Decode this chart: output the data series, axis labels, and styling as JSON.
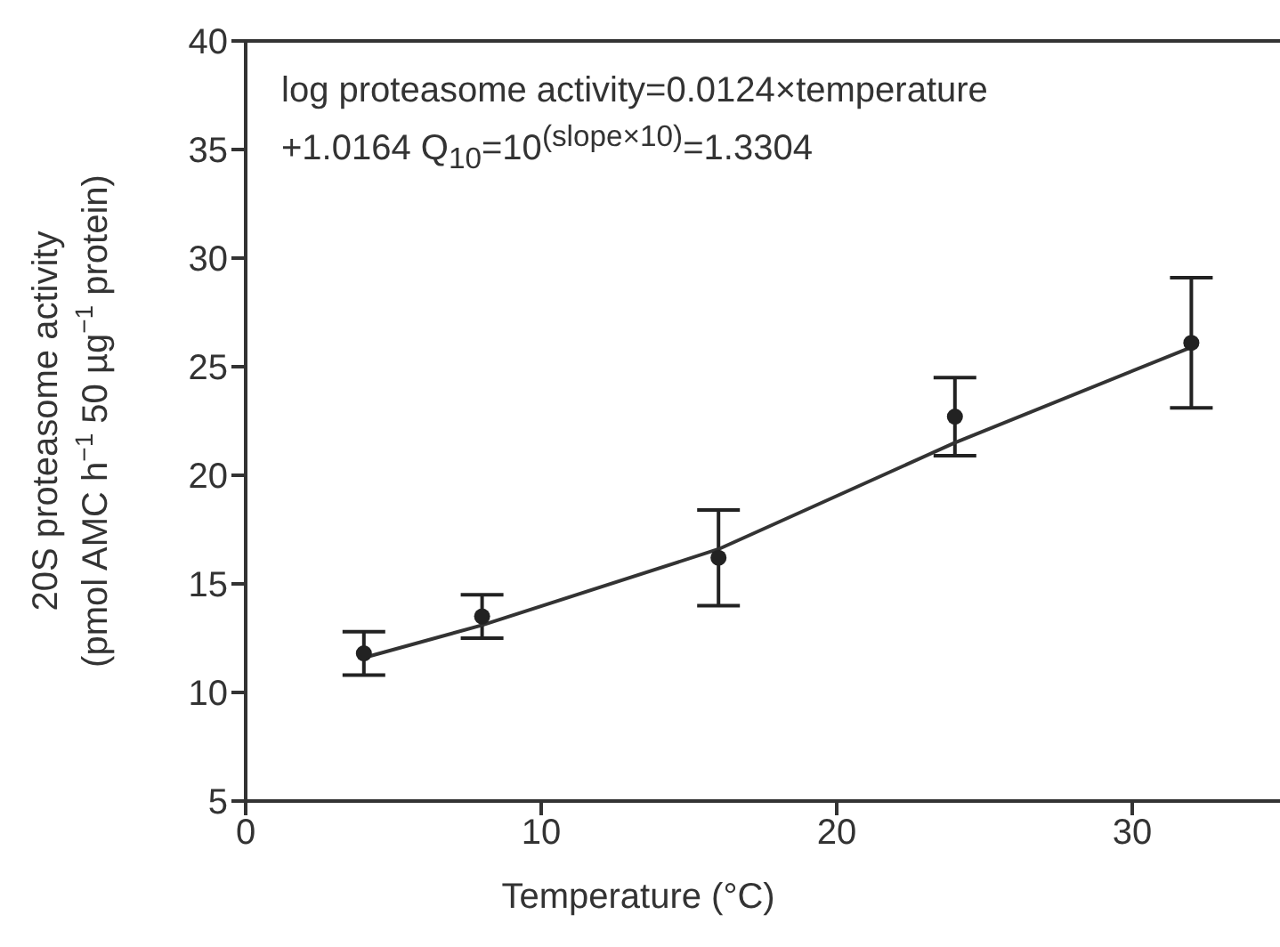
{
  "chart_data": {
    "type": "scatter",
    "xlabel": "Temperature (°C)",
    "ylabel": "20S proteasome activity\n(pmol AMC h$^{−1}$ 50 µg$^{−1}$ protein)",
    "annotations": [
      "log proteasome activity=0.0124×temperature",
      "+1.0164 Q$_{10}$=10$^{(slope×10)}$=1.3304"
    ],
    "series": [
      {
        "color": "#222222",
        "x": [
          4,
          8,
          16,
          24,
          32
        ],
        "values": [
          11.8,
          13.5,
          16.2,
          22.7,
          26.1
        ],
        "errors": [
          1,
          1,
          2.2,
          1.8,
          3
        ],
        "marker": "circle"
      },
      {
        "type": "line",
        "color": "#333333",
        "x": [
          4,
          8,
          16,
          24,
          32
        ],
        "values": [
          11.6,
          13.1,
          16.6,
          21.5,
          25.9
        ],
        "marker": "none",
        "line_style": "solid"
      }
    ],
    "xlim": [
      0,
      35
    ],
    "xticks": [
      0,
      10,
      20,
      30
    ],
    "ylim": [
      5,
      40
    ],
    "yticks": [
      5,
      10,
      15,
      20,
      25,
      30,
      35,
      40
    ],
    "grid": false
  }
}
